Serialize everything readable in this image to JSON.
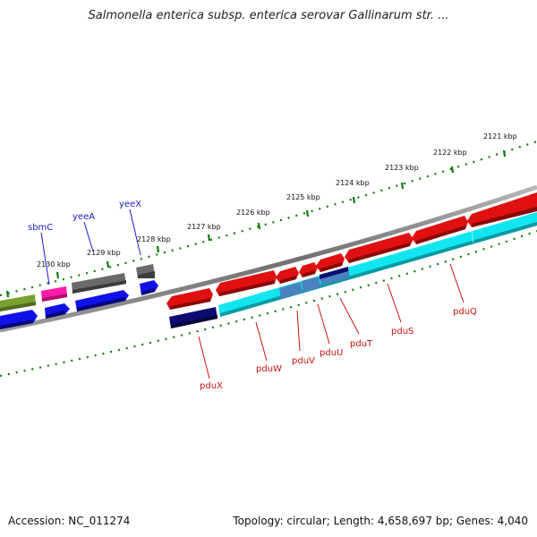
{
  "title": "Salmonella enterica subsp. enterica serovar Gallinarum str. ...",
  "footer": {
    "accession": "Accession: NC_011274",
    "summary": "Topology: circular; Length: 4,658,697 bp; Genes: 4,040"
  },
  "scale": {
    "ticks": [
      {
        "label": "2121 kbp",
        "pos": 2121
      },
      {
        "label": "2122 kbp",
        "pos": 2122
      },
      {
        "label": "2123 kbp",
        "pos": 2123
      },
      {
        "label": "2124 kbp",
        "pos": 2124
      },
      {
        "label": "2125 kbp",
        "pos": 2125
      },
      {
        "label": "2126 kbp",
        "pos": 2126
      },
      {
        "label": "2127 kbp",
        "pos": 2127
      },
      {
        "label": "2128 kbp",
        "pos": 2128
      },
      {
        "label": "2129 kbp",
        "pos": 2129
      },
      {
        "label": "2130 kbp",
        "pos": 2130
      }
    ]
  },
  "genes": {
    "upper_labels": [
      {
        "name": "sbmC",
        "color": "#1a1acc"
      },
      {
        "name": "yeeA",
        "color": "#1a1acc"
      },
      {
        "name": "yeeX",
        "color": "#1a1acc"
      }
    ],
    "lower_labels": [
      {
        "name": "pduX",
        "color": "#cc1111"
      },
      {
        "name": "pduW",
        "color": "#cc1111"
      },
      {
        "name": "pduV",
        "color": "#cc1111"
      },
      {
        "name": "pduU",
        "color": "#cc1111"
      },
      {
        "name": "pduT",
        "color": "#cc1111"
      },
      {
        "name": "pduS",
        "color": "#cc1111"
      },
      {
        "name": "pduQ",
        "color": "#cc1111"
      }
    ]
  },
  "colors": {
    "red_cds": "#e01010",
    "blue_cds": "#1010e8",
    "navy_cds": "#0b0b70",
    "cyan_cds": "#11e6f0",
    "steel_cds": "#4a82c0",
    "gray_cds": "#6a6a6a",
    "pink_cds": "#ff1aa8",
    "olive_cds": "#7aa030",
    "tick_green": "#127a12",
    "backbone": "#808080"
  }
}
